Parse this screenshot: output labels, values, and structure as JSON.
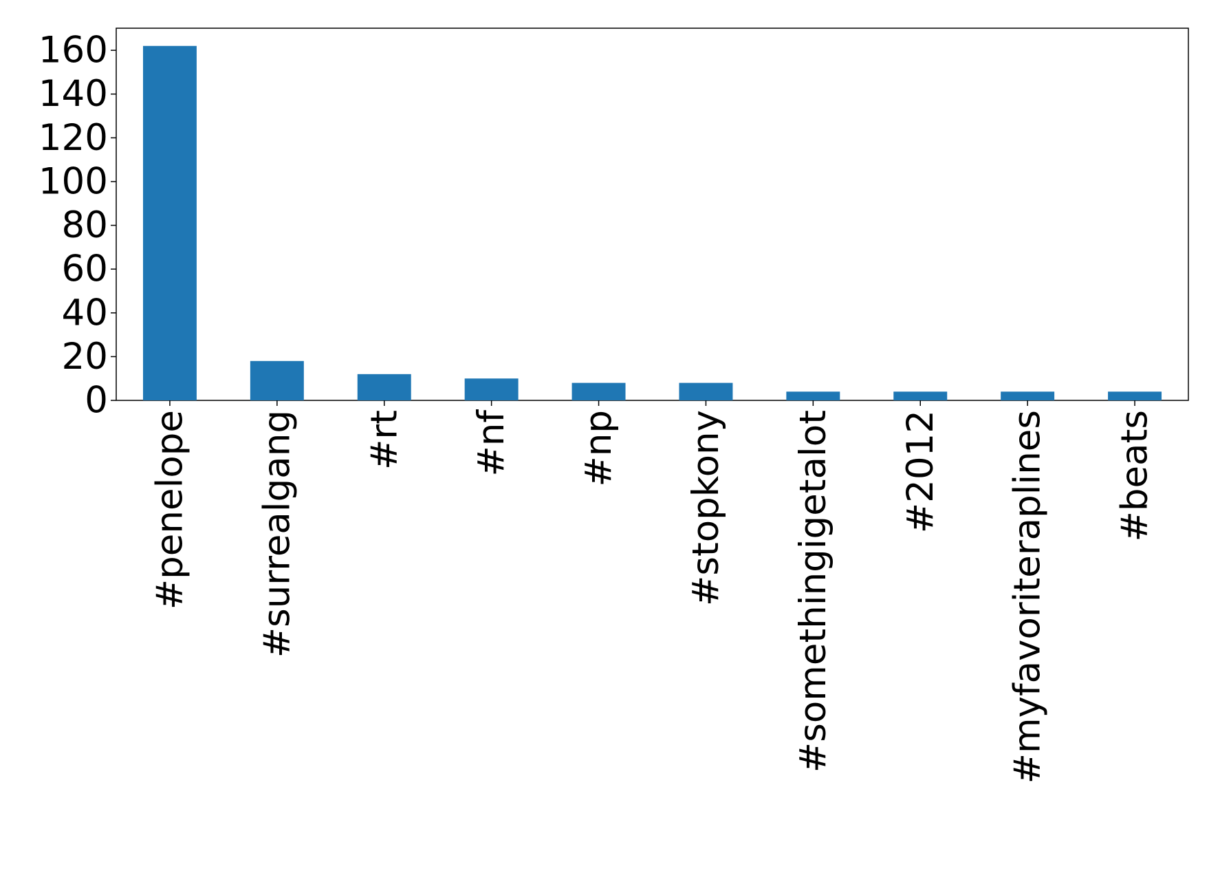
{
  "chart_data": {
    "type": "bar",
    "categories": [
      "#penelope",
      "#surrealgang",
      "#rt",
      "#nf",
      "#np",
      "#stopkony",
      "#somethingigetalot",
      "#2012",
      "#myfavoriteraplines",
      "#beats"
    ],
    "values": [
      162,
      18,
      12,
      10,
      8,
      8,
      4,
      4,
      4,
      4
    ],
    "color": "#1f77b4",
    "ylim": [
      0,
      170.1
    ],
    "yticks": [
      0,
      20,
      40,
      60,
      80,
      100,
      120,
      140,
      160
    ],
    "grid": false
  }
}
